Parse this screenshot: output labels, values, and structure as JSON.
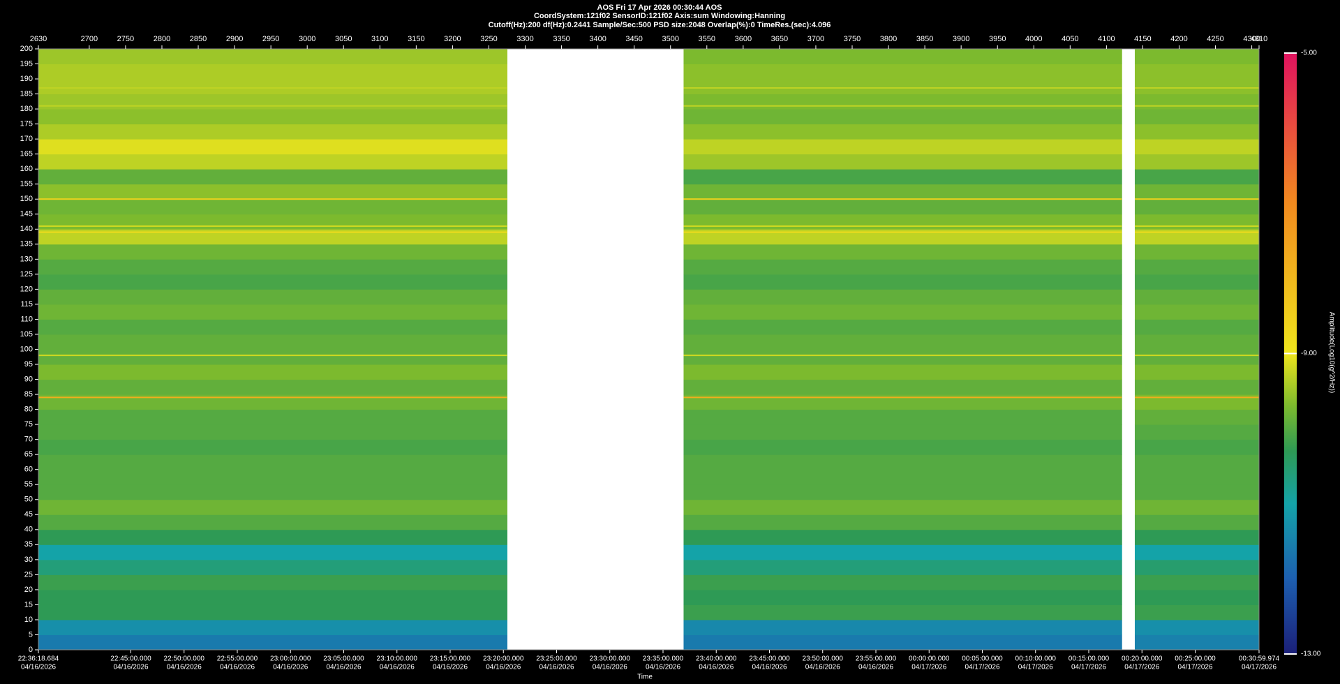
{
  "chart_data": {
    "type": "spectrogram",
    "title": "AOS  Fri 17 Apr 2026 00:30:44  AOS",
    "subtitle_lines": [
      "CoordSystem:121f02   SensorID:121f02   Axis:sum   Windowing:Hanning",
      "Cutoff(Hz):200    df(Hz):0.2441    Sample/Sec:500    PSD size:2048    Overlap(%):0    TimeRes.(sec):4.096"
    ],
    "xlabel": "Time",
    "colorbar_label": "Amplitude(Log10(g^2/Hz))",
    "xlim": [
      2630,
      4310
    ],
    "ylim": [
      0,
      200
    ],
    "xticks": [
      2630,
      2700,
      2750,
      2800,
      2850,
      2900,
      2950,
      3000,
      3050,
      3100,
      3150,
      3200,
      3250,
      3300,
      3350,
      3400,
      3450,
      3500,
      3550,
      3600,
      3650,
      3700,
      3750,
      3800,
      3850,
      3900,
      3950,
      4000,
      4050,
      4100,
      4150,
      4200,
      4250,
      4300,
      4310
    ],
    "yticks": [
      0,
      5,
      10,
      15,
      20,
      25,
      30,
      35,
      40,
      45,
      50,
      55,
      60,
      65,
      70,
      75,
      80,
      85,
      90,
      95,
      100,
      105,
      110,
      115,
      120,
      125,
      130,
      135,
      140,
      145,
      150,
      155,
      160,
      165,
      170,
      175,
      180,
      185,
      190,
      195,
      200
    ],
    "time_ticks": [
      {
        "value": 2630,
        "label": "22:36:18.684"
      },
      {
        "value": 2757.27,
        "label": "22:45:00.000"
      },
      {
        "value": 2830.51,
        "label": "22:50:00.000"
      },
      {
        "value": 2903.75,
        "label": "22:55:00.000"
      },
      {
        "value": 2976.99,
        "label": "23:00:00.000"
      },
      {
        "value": 3050.24,
        "label": "23:05:00.000"
      },
      {
        "value": 3123.48,
        "label": "23:10:00.000"
      },
      {
        "value": 3196.72,
        "label": "23:15:00.000"
      },
      {
        "value": 3269.96,
        "label": "23:20:00.000"
      },
      {
        "value": 3343.2,
        "label": "23:25:00.000"
      },
      {
        "value": 3416.44,
        "label": "23:30:00.000"
      },
      {
        "value": 3489.69,
        "label": "23:35:00.000"
      },
      {
        "value": 3562.93,
        "label": "23:40:00.000"
      },
      {
        "value": 3636.17,
        "label": "23:45:00.000"
      },
      {
        "value": 3709.41,
        "label": "23:50:00.000"
      },
      {
        "value": 3782.65,
        "label": "23:55:00.000"
      },
      {
        "value": 3855.9,
        "label": "00:00:00.000"
      },
      {
        "value": 3929.14,
        "label": "00:05:00.000"
      },
      {
        "value": 4002.38,
        "label": "00:10:00.000"
      },
      {
        "value": 4075.62,
        "label": "00:15:00.000"
      },
      {
        "value": 4148.86,
        "label": "00:20:00.000"
      },
      {
        "value": 4222.11,
        "label": "00:25:00.000"
      },
      {
        "value": 4310,
        "label": "00:30:59.974"
      }
    ],
    "time_tick_dates": [
      "04/16/2026",
      "04/16/2026",
      "04/16/2026",
      "04/16/2026",
      "04/16/2026",
      "04/16/2026",
      "04/16/2026",
      "04/16/2026",
      "04/16/2026",
      "04/16/2026",
      "04/16/2026",
      "04/16/2026",
      "04/16/2026",
      "04/16/2026",
      "04/16/2026",
      "04/16/2026",
      "04/17/2026",
      "04/17/2026",
      "04/17/2026",
      "04/17/2026",
      "04/17/2026",
      "04/17/2026",
      "04/17/2026"
    ],
    "clim": [
      -13,
      -5
    ],
    "cticks": [
      {
        "value": -5,
        "label": "-5.00"
      },
      {
        "value": -9,
        "label": "-9.00"
      },
      {
        "value": -13,
        "label": "-13.00"
      }
    ],
    "colorscale": [
      [
        -13,
        "#1b1f78"
      ],
      [
        -12,
        "#1d5fb0"
      ],
      [
        -11,
        "#14a3a8"
      ],
      [
        -10.3,
        "#2e9a55"
      ],
      [
        -9.7,
        "#7cba2e"
      ],
      [
        -9,
        "#efe51c"
      ],
      [
        -7,
        "#f28a1e"
      ],
      [
        -5,
        "#e0125e"
      ]
    ],
    "xbins": [
      2630,
      3275,
      3518,
      4121,
      4139,
      4310
    ],
    "ybins": [
      0,
      5,
      10,
      15,
      20,
      25,
      30,
      35,
      40,
      45,
      50,
      55,
      60,
      65,
      70,
      75,
      80,
      85,
      90,
      95,
      100,
      105,
      110,
      115,
      120,
      125,
      130,
      135,
      140,
      145,
      150,
      155,
      160,
      165,
      170,
      175,
      180,
      185,
      190,
      195,
      200
    ],
    "z": [
      [
        -11.6,
        null,
        -11.6,
        null,
        -11.5
      ],
      [
        -11.3,
        null,
        -11.4,
        null,
        -11.3
      ],
      [
        -10.3,
        null,
        -10.2,
        null,
        -10.2
      ],
      [
        -10.3,
        null,
        -10.3,
        null,
        -10.3
      ],
      [
        -10.2,
        null,
        -10.2,
        null,
        -10.2
      ],
      [
        -10.6,
        null,
        -10.6,
        null,
        -10.5
      ],
      [
        -11.0,
        null,
        -11.0,
        null,
        -11.0
      ],
      [
        -10.3,
        null,
        -10.3,
        null,
        -10.3
      ],
      [
        -10.0,
        null,
        -10.0,
        null,
        -10.0
      ],
      [
        -9.8,
        null,
        -9.8,
        null,
        -9.8
      ],
      [
        -10.0,
        null,
        -10.0,
        null,
        -10.0
      ],
      [
        -10.0,
        null,
        -10.0,
        null,
        -10.0
      ],
      [
        -10.0,
        null,
        -10.0,
        null,
        -10.0
      ],
      [
        -10.1,
        null,
        -10.1,
        null,
        -10.1
      ],
      [
        -10.0,
        null,
        -10.0,
        null,
        -10.0
      ],
      [
        -10.0,
        null,
        -10.0,
        null,
        -9.9
      ],
      [
        -9.8,
        null,
        -9.8,
        null,
        -9.7
      ],
      [
        -9.9,
        null,
        -9.9,
        null,
        -9.9
      ],
      [
        -9.7,
        null,
        -9.7,
        null,
        -9.7
      ],
      [
        -9.9,
        null,
        -9.9,
        null,
        -9.9
      ],
      [
        -9.9,
        null,
        -9.9,
        null,
        -9.9
      ],
      [
        -10.0,
        null,
        -10.0,
        null,
        -10.0
      ],
      [
        -9.8,
        null,
        -9.8,
        null,
        -9.8
      ],
      [
        -9.9,
        null,
        -9.9,
        null,
        -9.9
      ],
      [
        -10.1,
        null,
        -10.1,
        null,
        -10.1
      ],
      [
        -10.0,
        null,
        -10.0,
        null,
        -10.0
      ],
      [
        -9.8,
        null,
        -9.8,
        null,
        -9.8
      ],
      [
        -9.3,
        null,
        -9.3,
        null,
        -9.3
      ],
      [
        -9.7,
        null,
        -9.7,
        null,
        -9.7
      ],
      [
        -9.8,
        null,
        -9.9,
        null,
        -9.9
      ],
      [
        -9.6,
        null,
        -9.8,
        null,
        -9.8
      ],
      [
        -9.9,
        null,
        -10.1,
        null,
        -10.1
      ],
      [
        -9.3,
        null,
        -9.5,
        null,
        -9.5
      ],
      [
        -9.1,
        null,
        -9.3,
        null,
        -9.3
      ],
      [
        -9.4,
        null,
        -9.6,
        null,
        -9.6
      ],
      [
        -9.6,
        null,
        -9.8,
        null,
        -9.8
      ],
      [
        -9.5,
        null,
        -9.7,
        null,
        -9.7
      ],
      [
        -9.4,
        null,
        -9.6,
        null,
        -9.6
      ],
      [
        -9.4,
        null,
        -9.6,
        null,
        -9.6
      ],
      [
        -9.5,
        null,
        -9.7,
        null,
        -9.7
      ]
    ],
    "tonal_lines": {
      "freqs": [
        84,
        98,
        139,
        141,
        150,
        181,
        187
      ],
      "values": [
        -7.8,
        -9.2,
        -8.8,
        -9.2,
        -8.6,
        -9.3,
        -9.3
      ]
    }
  }
}
